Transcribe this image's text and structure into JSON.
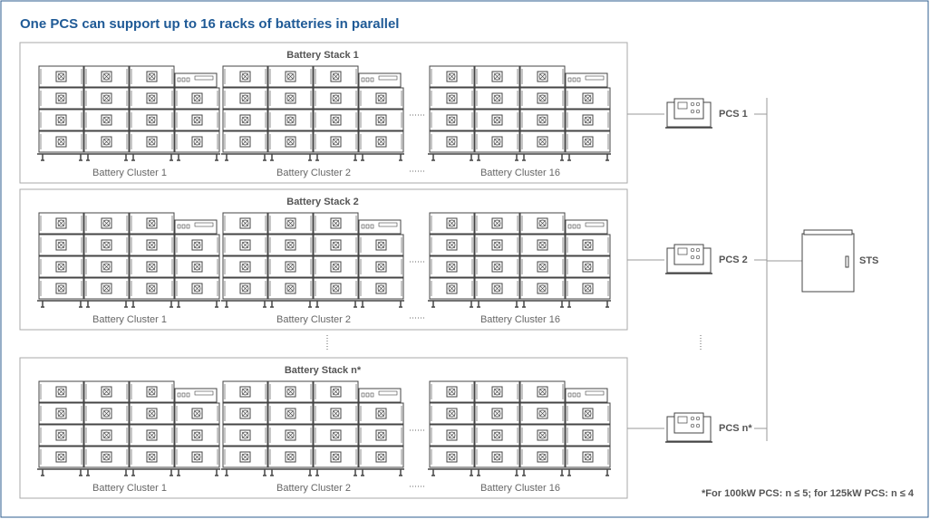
{
  "title": "One PCS can support up to 16 racks of batteries in parallel",
  "stacks": [
    {
      "label": "Battery Stack 1",
      "clusters": [
        "Battery Cluster 1",
        "Battery Cluster 2",
        "Battery Cluster 16"
      ]
    },
    {
      "label": "Battery Stack 2",
      "clusters": [
        "Battery Cluster 1",
        "Battery Cluster 2",
        "Battery Cluster 16"
      ]
    },
    {
      "label": "Battery Stack n*",
      "clusters": [
        "Battery Cluster 1",
        "Battery Cluster 2",
        "Battery Cluster 16"
      ]
    }
  ],
  "pcs": [
    "PCS 1",
    "PCS 2",
    "PCS n*"
  ],
  "sts": "STS",
  "footnote": "*For 100kW PCS: n ≤ 5; for 125kW PCS: n ≤ 4"
}
